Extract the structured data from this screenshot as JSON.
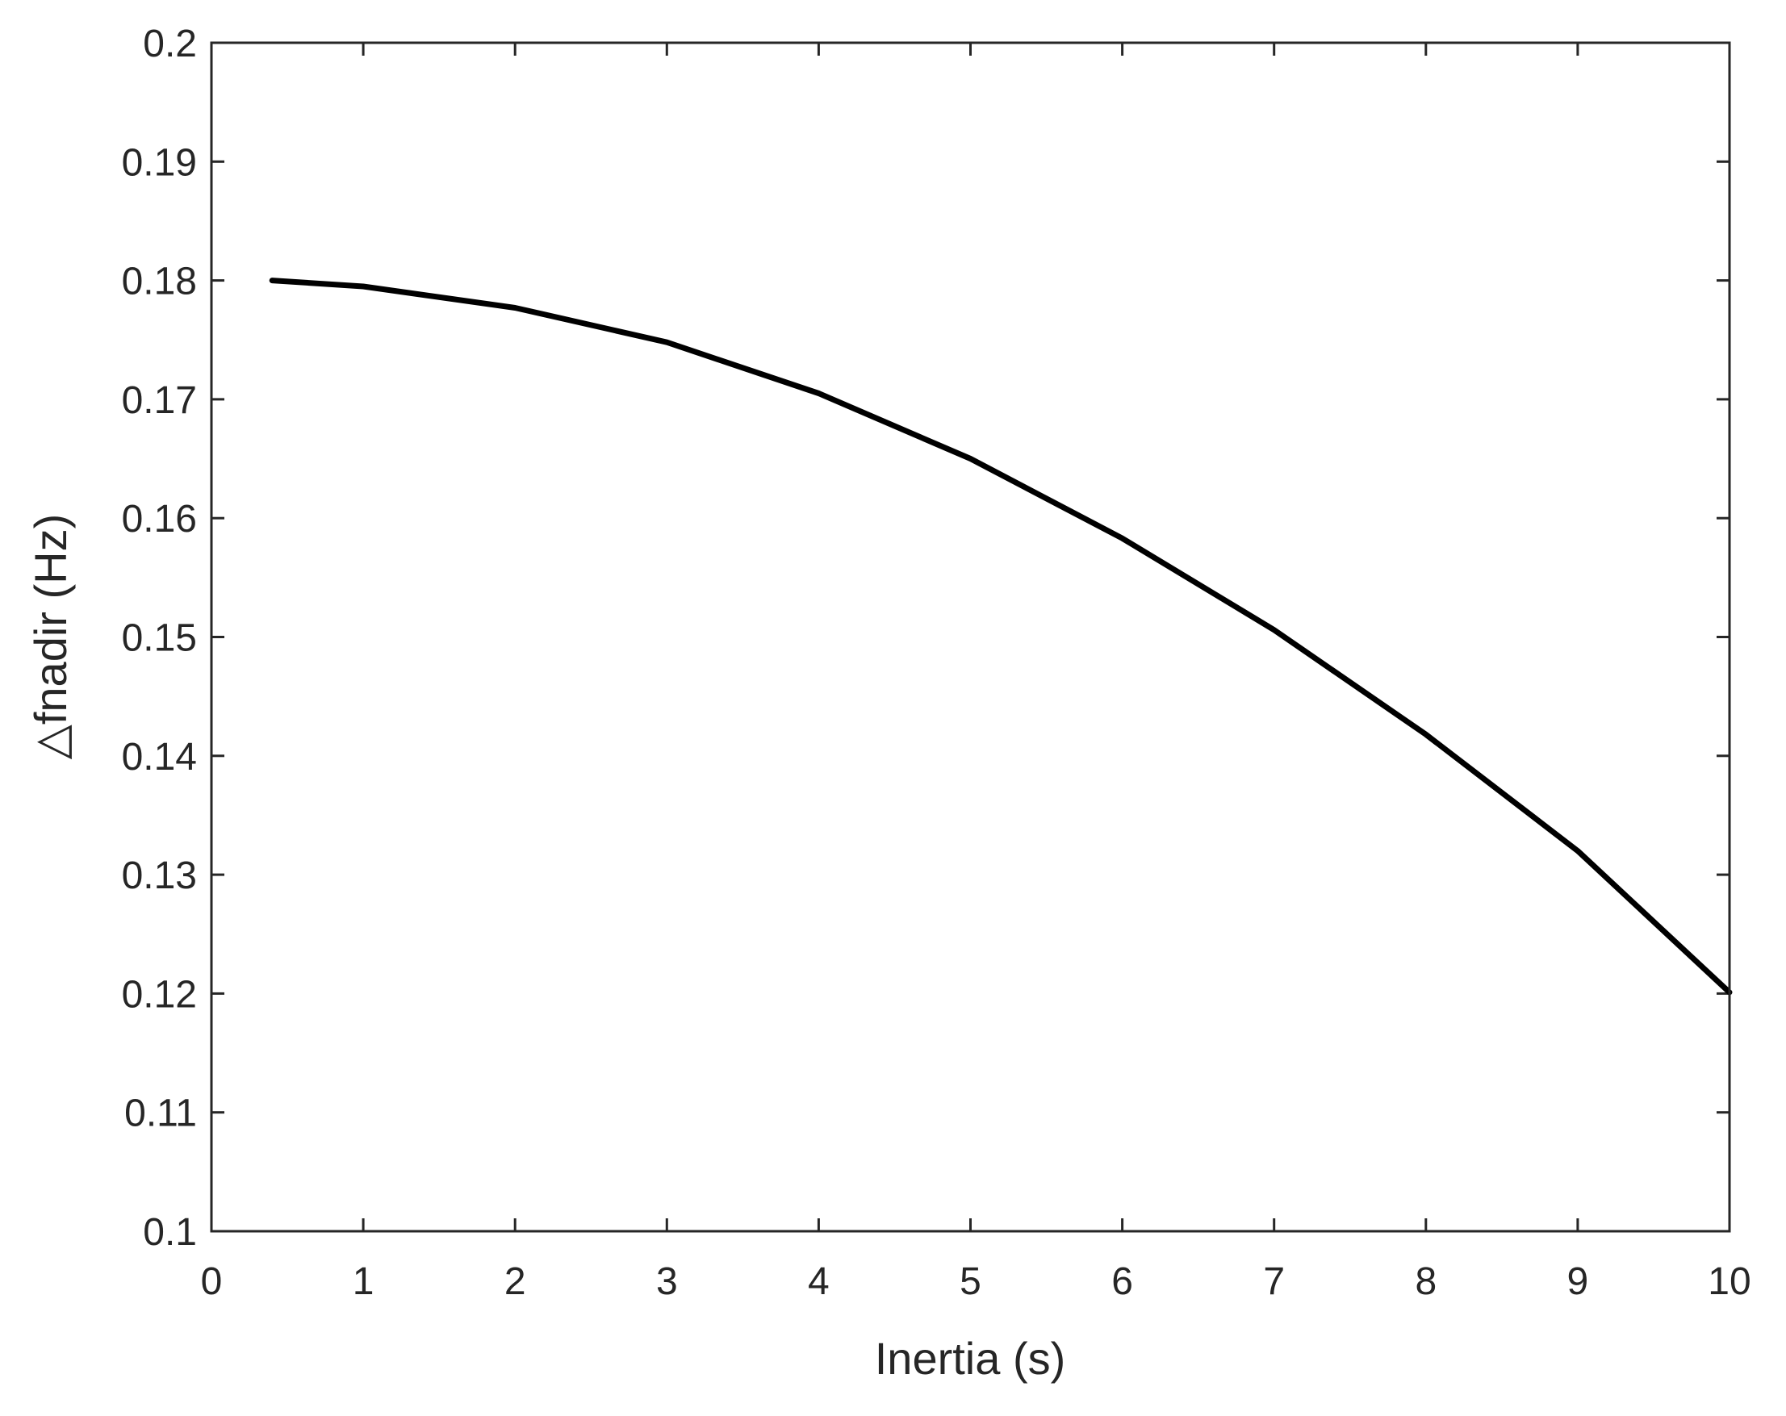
{
  "chart_data": {
    "type": "line",
    "title": "",
    "xlabel": "Inertia (s)",
    "ylabel": "△fnadir (Hz)",
    "xlim": [
      0,
      10
    ],
    "ylim": [
      0.1,
      0.2
    ],
    "xticks": [
      0,
      1,
      2,
      3,
      4,
      5,
      6,
      7,
      8,
      9,
      10
    ],
    "yticks": [
      0.1,
      0.11,
      0.12,
      0.13,
      0.14,
      0.15,
      0.16,
      0.17,
      0.18,
      0.19,
      0.2
    ],
    "xtick_labels": [
      "0",
      "1",
      "2",
      "3",
      "4",
      "5",
      "6",
      "7",
      "8",
      "9",
      "10"
    ],
    "ytick_labels": [
      "0.1",
      "0.11",
      "0.12",
      "0.13",
      "0.14",
      "0.15",
      "0.16",
      "0.17",
      "0.18",
      "0.19",
      "0.2"
    ],
    "grid": false,
    "series": [
      {
        "color": "#000000",
        "x": [
          0.4,
          1,
          2,
          3,
          4,
          5,
          6,
          7,
          8,
          9,
          10
        ],
        "y": [
          0.18,
          0.1795,
          0.1777,
          0.1748,
          0.1705,
          0.165,
          0.1583,
          0.1506,
          0.1418,
          0.132,
          0.1201
        ]
      }
    ]
  }
}
